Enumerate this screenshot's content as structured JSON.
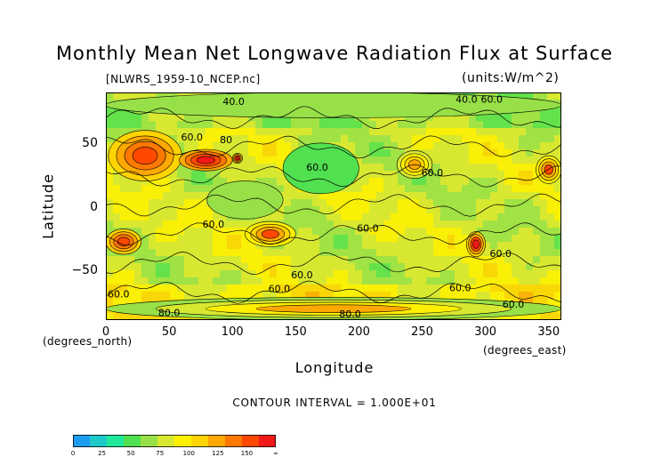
{
  "chart_data": {
    "type": "heatmap",
    "title": "Monthly Mean Net Longwave Radiation Flux at Surface",
    "file_label": "[NLWRS_1959-10_NCEP.nc]",
    "units_label": "(units:W/m^2)",
    "xlabel": "Longitude",
    "ylabel": "Latitude",
    "x_unit_label": "(degrees_east)",
    "y_unit_label": "(degrees_north)",
    "xlim": [
      0,
      360
    ],
    "ylim": [
      -90,
      90
    ],
    "x_ticks": [
      "0",
      "50",
      "100",
      "150",
      "200",
      "250",
      "300",
      "350"
    ],
    "y_ticks": [
      "50",
      "0",
      "−50"
    ],
    "contour_interval_text": "CONTOUR INTERVAL = 1.000E+01",
    "contour_labels": [
      {
        "text": "40.0",
        "lon": 101,
        "lat": 80
      },
      {
        "text": "40.0",
        "lon": 285,
        "lat": 82
      },
      {
        "text": "60.0",
        "lon": 305,
        "lat": 82
      },
      {
        "text": "60.0",
        "lon": 68,
        "lat": 52
      },
      {
        "text": "80",
        "lon": 95,
        "lat": 50
      },
      {
        "text": "60.0",
        "lon": 167,
        "lat": 28
      },
      {
        "text": "60.0",
        "lon": 258,
        "lat": 24
      },
      {
        "text": "60.0",
        "lon": 85,
        "lat": -17
      },
      {
        "text": "60.0",
        "lon": 207,
        "lat": -20
      },
      {
        "text": "60.0",
        "lon": 155,
        "lat": -57
      },
      {
        "text": "60.0",
        "lon": 137,
        "lat": -68
      },
      {
        "text": "60.0",
        "lon": 280,
        "lat": -67
      },
      {
        "text": "60.0",
        "lon": 312,
        "lat": -40
      },
      {
        "text": "60.0",
        "lon": 10,
        "lat": -72
      },
      {
        "text": "60.0",
        "lon": 322,
        "lat": -80
      },
      {
        "text": "80.0",
        "lon": 50,
        "lat": -87
      },
      {
        "text": "80.0",
        "lon": 193,
        "lat": -88
      }
    ],
    "colorbar": {
      "levels": [
        "0",
        "25",
        "50",
        "75",
        "100",
        "125",
        "150",
        "∞"
      ],
      "colors": [
        "#1e9cf0",
        "#1fc8c8",
        "#20e89a",
        "#50e050",
        "#98e048",
        "#d8e830",
        "#fff000",
        "#ffd400",
        "#ffa800",
        "#ff7800",
        "#ff4800",
        "#f01818"
      ]
    },
    "regions": [
      {
        "lon": [
          2,
          60
        ],
        "lat": [
          20,
          60
        ],
        "value": 130
      },
      {
        "lon": [
          58,
          100
        ],
        "lat": [
          28,
          45
        ],
        "value": 145
      },
      {
        "lon": [
          100,
          108
        ],
        "lat": [
          34,
          42
        ],
        "value": 140
      },
      {
        "lon": [
          230,
          258
        ],
        "lat": [
          22,
          44
        ],
        "value": 110
      },
      {
        "lon": [
          340,
          360
        ],
        "lat": [
          18,
          40
        ],
        "value": 125
      },
      {
        "lon": [
          0,
          28
        ],
        "lat": [
          -38,
          -18
        ],
        "value": 135
      },
      {
        "lon": [
          110,
          150
        ],
        "lat": [
          -32,
          -12
        ],
        "value": 125
      },
      {
        "lon": [
          285,
          300
        ],
        "lat": [
          -40,
          -20
        ],
        "value": 140
      },
      {
        "lon": [
          0,
          360
        ],
        "lat": [
          -90,
          -72
        ],
        "value": 100
      },
      {
        "lon": [
          0,
          360
        ],
        "lat": [
          70,
          90
        ],
        "value": 50
      },
      {
        "lon": [
          80,
          140
        ],
        "lat": [
          -10,
          20
        ],
        "value": 50
      },
      {
        "lon": [
          140,
          200
        ],
        "lat": [
          10,
          50
        ],
        "value": 45
      }
    ]
  }
}
